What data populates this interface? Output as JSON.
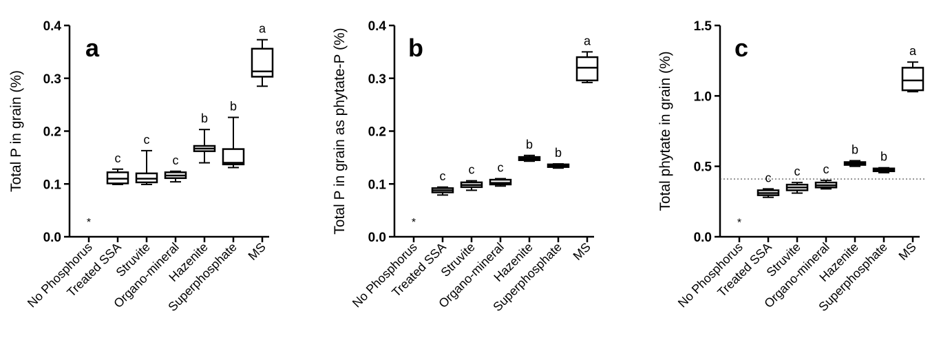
{
  "chart_data": [
    {
      "type": "box",
      "panel_label": "a",
      "ylabel": "Total P in grain (%)",
      "ylim": [
        0,
        0.4
      ],
      "yticks": [
        "0.0",
        "0.1",
        "0.2",
        "0.3",
        "0.4"
      ],
      "categories": [
        "No Phosphorus",
        "Treated SSA",
        "Struvite",
        "Organo-mineral",
        "Hazenite",
        "Superphosphate",
        "MS"
      ],
      "boxes": [
        {
          "category": "No Phosphorus",
          "marker": "*",
          "marker_y": 0.03
        },
        {
          "category": "Treated SSA",
          "min": 0.099,
          "q1": 0.101,
          "median": 0.11,
          "q3": 0.122,
          "max": 0.128,
          "sig": "c"
        },
        {
          "category": "Struvite",
          "min": 0.099,
          "q1": 0.103,
          "median": 0.11,
          "q3": 0.12,
          "max": 0.163,
          "sig": "c"
        },
        {
          "category": "Organo-mineral",
          "min": 0.104,
          "q1": 0.111,
          "median": 0.116,
          "q3": 0.122,
          "max": 0.124,
          "sig": "c"
        },
        {
          "category": "Hazenite",
          "min": 0.14,
          "q1": 0.162,
          "median": 0.167,
          "q3": 0.172,
          "max": 0.203,
          "sig": "b"
        },
        {
          "category": "Superphosphate",
          "min": 0.131,
          "q1": 0.137,
          "median": 0.14,
          "q3": 0.166,
          "max": 0.226,
          "sig": "b"
        },
        {
          "category": "MS",
          "min": 0.285,
          "q1": 0.303,
          "median": 0.313,
          "q3": 0.356,
          "max": 0.373,
          "sig": "a"
        }
      ]
    },
    {
      "type": "box",
      "panel_label": "b",
      "ylabel": "Total P in grain as phytate-P (%)",
      "ylim": [
        0,
        0.4
      ],
      "yticks": [
        "0.0",
        "0.1",
        "0.2",
        "0.3",
        "0.4"
      ],
      "categories": [
        "No Phosphorus",
        "Treated SSA",
        "Struvite",
        "Organo-mineral",
        "Hazenite",
        "Superphosphate",
        "MS"
      ],
      "boxes": [
        {
          "category": "No Phosphorus",
          "marker": "*",
          "marker_y": 0.03
        },
        {
          "category": "Treated SSA",
          "min": 0.079,
          "q1": 0.084,
          "median": 0.088,
          "q3": 0.092,
          "max": 0.094,
          "sig": "c"
        },
        {
          "category": "Struvite",
          "min": 0.088,
          "q1": 0.094,
          "median": 0.098,
          "q3": 0.103,
          "max": 0.106,
          "sig": "c"
        },
        {
          "category": "Organo-mineral",
          "min": 0.096,
          "q1": 0.099,
          "median": 0.102,
          "q3": 0.108,
          "max": 0.11,
          "sig": "c"
        },
        {
          "category": "Hazenite",
          "min": 0.143,
          "q1": 0.145,
          "median": 0.148,
          "q3": 0.151,
          "max": 0.154,
          "sig": "b"
        },
        {
          "category": "Superphosphate",
          "min": 0.13,
          "q1": 0.132,
          "median": 0.134,
          "q3": 0.137,
          "max": 0.138,
          "sig": "b"
        },
        {
          "category": "MS",
          "min": 0.292,
          "q1": 0.296,
          "median": 0.32,
          "q3": 0.34,
          "max": 0.35,
          "sig": "a"
        }
      ]
    },
    {
      "type": "box",
      "panel_label": "c",
      "ylabel": "Total phytate in grain (%)",
      "ylim": [
        0,
        1.5
      ],
      "yticks": [
        "0.0",
        "0.5",
        "1.0",
        "1.5"
      ],
      "reference_line": 0.41,
      "categories": [
        "No Phosphorus",
        "Treated SSA",
        "Struvite",
        "Organo-mineral",
        "Hazenite",
        "Superphosphate",
        "MS"
      ],
      "boxes": [
        {
          "category": "No Phosphorus",
          "marker": "*",
          "marker_y": 0.11
        },
        {
          "category": "Treated SSA",
          "min": 0.28,
          "q1": 0.295,
          "median": 0.31,
          "q3": 0.33,
          "max": 0.34,
          "sig": "c"
        },
        {
          "category": "Struvite",
          "min": 0.31,
          "q1": 0.33,
          "median": 0.35,
          "q3": 0.37,
          "max": 0.385,
          "sig": "c"
        },
        {
          "category": "Organo-mineral",
          "min": 0.34,
          "q1": 0.35,
          "median": 0.365,
          "q3": 0.385,
          "max": 0.4,
          "sig": "c"
        },
        {
          "category": "Hazenite",
          "min": 0.5,
          "q1": 0.51,
          "median": 0.52,
          "q3": 0.53,
          "max": 0.54,
          "sig": "b"
        },
        {
          "category": "Superphosphate",
          "min": 0.455,
          "q1": 0.465,
          "median": 0.475,
          "q3": 0.485,
          "max": 0.49,
          "sig": "b"
        },
        {
          "category": "MS",
          "min": 1.03,
          "q1": 1.04,
          "median": 1.11,
          "q3": 1.2,
          "max": 1.24,
          "sig": "a"
        }
      ]
    }
  ]
}
